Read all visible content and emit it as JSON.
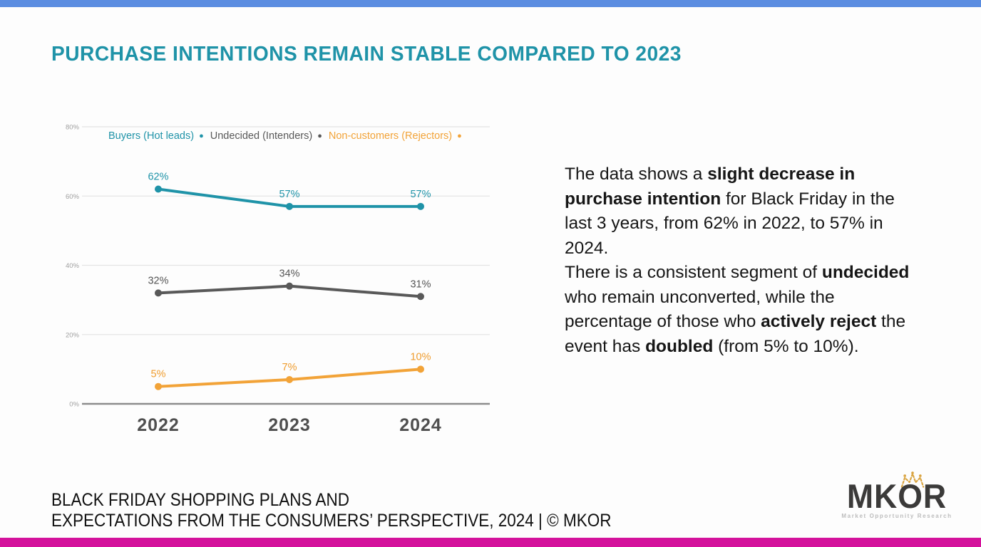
{
  "page": {
    "title": "PURCHASE INTENTIONS REMAIN STABLE COMPARED TO 2023",
    "title_color": "#1f93a8",
    "top_bar_color": "#5b8de1",
    "bottom_bar_color": "#d4129c",
    "background_color": "#fdfdfd"
  },
  "chart_data": {
    "type": "line",
    "categories": [
      "2022",
      "2023",
      "2024"
    ],
    "series": [
      {
        "name": "Buyers (Hot leads)",
        "values": [
          62,
          57,
          57
        ],
        "color": "#1f93a8",
        "label_color": "#1f93a8"
      },
      {
        "name": "Undecided (Intenders)",
        "values": [
          32,
          34,
          31
        ],
        "color": "#595959",
        "label_color": "#555555"
      },
      {
        "name": "Non-customers (Rejectors)",
        "values": [
          5,
          7,
          10
        ],
        "color": "#f2a338",
        "label_color": "#ef9c2d"
      }
    ],
    "title": "",
    "xlabel": "",
    "ylabel": "",
    "ylim": [
      0,
      80
    ],
    "yticks": [
      0,
      20,
      40,
      60,
      80
    ],
    "tick_suffix": "%",
    "value_suffix": "%",
    "grid": true,
    "legend_position": "top",
    "tick_color": "#9f9f9f",
    "gridline_color": "#e4e4e4",
    "baseline_color": "#8c8c8c",
    "category_label_color": "#4f4f4f"
  },
  "narrative": {
    "segments": [
      {
        "text": "The data shows a ",
        "bold": false
      },
      {
        "text": "slight decrease in purchase intention",
        "bold": true
      },
      {
        "text": " for Black Friday in the last 3 years, from 62% in 2022, to 57% in 2024.\nThere is a consistent segment of ",
        "bold": false
      },
      {
        "text": "undecided",
        "bold": true
      },
      {
        "text": " who remain unconverted, while the percentage of those who ",
        "bold": false
      },
      {
        "text": "actively reject",
        "bold": true
      },
      {
        "text": " the event has ",
        "bold": false
      },
      {
        "text": "doubled",
        "bold": true
      },
      {
        "text": " (from 5% to 10%).",
        "bold": false
      }
    ]
  },
  "footer": {
    "line1": "BLACK FRIDAY SHOPPING PLANS AND",
    "line2": "EXPECTATIONS FROM THE CONSUMERS’ PERSPECTIVE, 2024 | © MKOR"
  },
  "logo": {
    "name": "MKOR",
    "tagline": "Market Opportunity Research",
    "crown_color": "#d9a441"
  }
}
